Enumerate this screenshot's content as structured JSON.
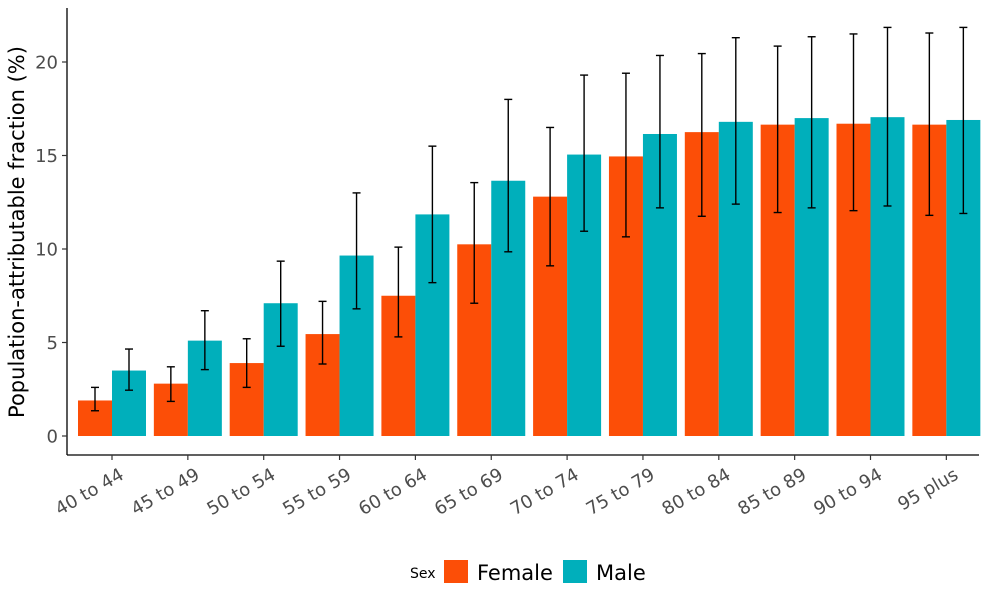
{
  "chart_data": {
    "type": "bar",
    "title": "",
    "xlabel": "",
    "ylabel": "Population-attributable fraction (%)",
    "ylim": [
      0,
      22
    ],
    "yticks": [
      0,
      5,
      10,
      15,
      20
    ],
    "categories": [
      "40 to 44",
      "45 to 49",
      "50 to 54",
      "55 to 59",
      "60 to 64",
      "65 to 69",
      "70 to 74",
      "75 to 79",
      "80 to 84",
      "85 to 89",
      "90 to 94",
      "95 plus"
    ],
    "series": [
      {
        "name": "Female",
        "color": "#fc4e07",
        "values": [
          1.9,
          2.8,
          3.9,
          5.45,
          7.5,
          10.25,
          12.8,
          14.95,
          16.25,
          16.65,
          16.7,
          16.65
        ],
        "lower": [
          1.35,
          1.85,
          2.6,
          3.85,
          5.3,
          7.1,
          9.1,
          10.65,
          11.75,
          11.95,
          12.05,
          11.8
        ],
        "upper": [
          2.6,
          3.7,
          5.2,
          7.2,
          10.1,
          13.55,
          16.5,
          19.4,
          20.45,
          20.85,
          21.5,
          21.55
        ]
      },
      {
        "name": "Male",
        "color": "#00afbb",
        "values": [
          3.5,
          5.1,
          7.1,
          9.65,
          11.85,
          13.65,
          15.05,
          16.15,
          16.8,
          17.0,
          17.05,
          16.9
        ],
        "lower": [
          2.45,
          3.55,
          4.8,
          6.8,
          8.2,
          9.85,
          10.95,
          12.2,
          12.4,
          12.2,
          12.3,
          11.9
        ],
        "upper": [
          4.65,
          6.7,
          9.35,
          13.0,
          15.5,
          18.0,
          19.3,
          20.35,
          21.3,
          21.35,
          21.85,
          21.85
        ]
      }
    ],
    "legend": {
      "title": "Sex",
      "position": "bottom",
      "entries": [
        "Female",
        "Male"
      ]
    }
  }
}
